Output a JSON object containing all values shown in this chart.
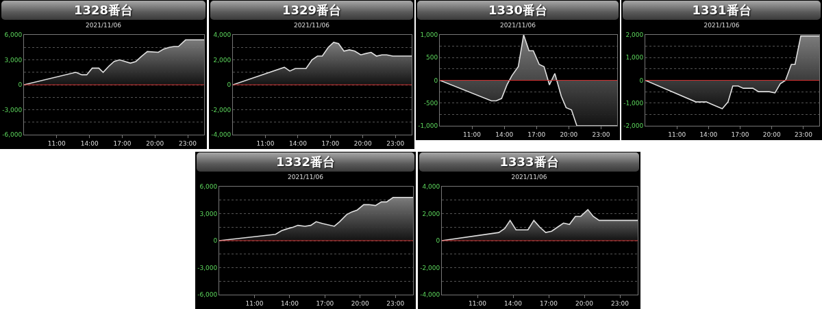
{
  "chart_data": [
    {
      "type": "area",
      "title": "1328番台",
      "subtitle": "2021/11/06",
      "color": "#e0e0e0",
      "x": [
        8,
        12.75,
        13.3,
        13.75,
        14.25,
        14.85,
        15.25,
        15.75,
        16.25,
        16.75,
        17.75,
        18.25,
        18.75,
        19.3,
        20.3,
        20.8,
        21.3,
        21.75,
        22.15,
        22.8,
        24.5
      ],
      "values": [
        0,
        1500,
        1200,
        1200,
        2000,
        2000,
        1500,
        2200,
        2800,
        3000,
        2600,
        2800,
        3400,
        4000,
        3900,
        4300,
        4500,
        4600,
        4600,
        5400,
        5400
      ],
      "xlim": [
        8,
        24.5
      ],
      "xticks": [
        {
          "value": 11,
          "label": "11:00"
        },
        {
          "value": 14,
          "label": "14:00"
        },
        {
          "value": 17,
          "label": "17:00"
        },
        {
          "value": 20,
          "label": "20:00"
        },
        {
          "value": 23,
          "label": "23:00"
        }
      ],
      "ylim": [
        -6000,
        6000
      ],
      "yticks": [
        {
          "value": -6000,
          "label": "-6,000"
        },
        {
          "value": -4500,
          "label": null
        },
        {
          "value": -3000,
          "label": "-3,000"
        },
        {
          "value": -1500,
          "label": null
        },
        {
          "value": 0,
          "label": "0"
        },
        {
          "value": 1500,
          "label": null
        },
        {
          "value": 3000,
          "label": "3,000"
        },
        {
          "value": 4500,
          "label": null
        },
        {
          "value": 6000,
          "label": "6,000"
        }
      ],
      "grid": "y",
      "ref_lines": [
        {
          "axis": "y",
          "value": 0,
          "color": "#d03030"
        }
      ]
    },
    {
      "type": "area",
      "title": "1329番台",
      "subtitle": "2021/11/06",
      "color": "#e0e0e0",
      "x": [
        8,
        12.75,
        13.25,
        13.75,
        14.2,
        14.75,
        15.3,
        15.8,
        16.25,
        16.8,
        17.3,
        17.75,
        18.25,
        18.75,
        19.25,
        19.8,
        20.25,
        20.75,
        21.25,
        21.75,
        22.2,
        22.75,
        24.5
      ],
      "values": [
        0,
        1400,
        1100,
        1300,
        1300,
        1300,
        2000,
        2300,
        2300,
        3000,
        3400,
        3300,
        2700,
        2800,
        2700,
        2400,
        2500,
        2600,
        2300,
        2400,
        2400,
        2300,
        2300
      ],
      "xlim": [
        8,
        24.5
      ],
      "xticks": [
        {
          "value": 11,
          "label": "11:00"
        },
        {
          "value": 14,
          "label": "14:00"
        },
        {
          "value": 17,
          "label": "17:00"
        },
        {
          "value": 20,
          "label": "20:00"
        },
        {
          "value": 23,
          "label": "23:00"
        }
      ],
      "ylim": [
        -4000,
        4000
      ],
      "yticks": [
        {
          "value": -4000,
          "label": "-4,000"
        },
        {
          "value": -3000,
          "label": null
        },
        {
          "value": -2000,
          "label": "-2,000"
        },
        {
          "value": -1000,
          "label": null
        },
        {
          "value": 0,
          "label": "0"
        },
        {
          "value": 1000,
          "label": null
        },
        {
          "value": 2000,
          "label": "2,000"
        },
        {
          "value": 3000,
          "label": null
        },
        {
          "value": 4000,
          "label": "4,000"
        }
      ],
      "grid": "y",
      "ref_lines": [
        {
          "axis": "y",
          "value": 0,
          "color": "#d03030"
        }
      ]
    },
    {
      "type": "area",
      "title": "1330番台",
      "subtitle": "2021/11/06",
      "color": "#e0e0e0",
      "x": [
        8,
        12.8,
        13.25,
        13.75,
        14.25,
        14.7,
        15.3,
        15.8,
        16.3,
        16.7,
        17.25,
        17.7,
        18.2,
        18.7,
        19.3,
        19.75,
        20.25,
        20.75,
        24.5
      ],
      "values": [
        0,
        -450,
        -450,
        -400,
        -100,
        100,
        300,
        1000,
        650,
        650,
        350,
        300,
        -100,
        150,
        -350,
        -600,
        -650,
        -1000,
        -1000
      ],
      "xlim": [
        8,
        24.5
      ],
      "xticks": [
        {
          "value": 11,
          "label": "11:00"
        },
        {
          "value": 14,
          "label": "14:00"
        },
        {
          "value": 17,
          "label": "17:00"
        },
        {
          "value": 20,
          "label": "20:00"
        },
        {
          "value": 23,
          "label": "23:00"
        }
      ],
      "ylim": [
        -1000,
        1000
      ],
      "yticks": [
        {
          "value": -1000,
          "label": "-1,000"
        },
        {
          "value": -750,
          "label": null
        },
        {
          "value": -500,
          "label": "-500"
        },
        {
          "value": -250,
          "label": null
        },
        {
          "value": 0,
          "label": "0"
        },
        {
          "value": 250,
          "label": null
        },
        {
          "value": 500,
          "label": "500"
        },
        {
          "value": 750,
          "label": null
        },
        {
          "value": 1000,
          "label": "1,000"
        }
      ],
      "grid": "y",
      "ref_lines": [
        {
          "axis": "y",
          "value": 0,
          "color": "#d03030"
        }
      ]
    },
    {
      "type": "area",
      "title": "1331番台",
      "subtitle": "2021/11/06",
      "color": "#e0e0e0",
      "x": [
        8,
        12.8,
        13.3,
        13.8,
        14.3,
        15.3,
        15.85,
        16.3,
        16.8,
        17.3,
        18.2,
        18.75,
        19.75,
        20.3,
        20.8,
        21.3,
        21.85,
        22.2,
        22.75,
        24.5
      ],
      "values": [
        0,
        -950,
        -950,
        -950,
        -1050,
        -1250,
        -950,
        -250,
        -250,
        -350,
        -350,
        -500,
        -500,
        -550,
        -150,
        0,
        700,
        700,
        1950,
        1950
      ],
      "xlim": [
        8,
        24.5
      ],
      "xticks": [
        {
          "value": 11,
          "label": "11:00"
        },
        {
          "value": 14,
          "label": "14:00"
        },
        {
          "value": 17,
          "label": "17:00"
        },
        {
          "value": 20,
          "label": "20:00"
        },
        {
          "value": 23,
          "label": "23:00"
        }
      ],
      "ylim": [
        -2000,
        2000
      ],
      "yticks": [
        {
          "value": -2000,
          "label": "-2,000"
        },
        {
          "value": -1500,
          "label": null
        },
        {
          "value": -1000,
          "label": "-1,000"
        },
        {
          "value": -500,
          "label": null
        },
        {
          "value": 0,
          "label": "0"
        },
        {
          "value": 500,
          "label": null
        },
        {
          "value": 1000,
          "label": "1,000"
        },
        {
          "value": 1500,
          "label": null
        },
        {
          "value": 2000,
          "label": "2,000"
        }
      ],
      "grid": "y",
      "ref_lines": [
        {
          "axis": "y",
          "value": 0,
          "color": "#d03030"
        }
      ]
    },
    {
      "type": "area",
      "title": "1332番台",
      "subtitle": "2021/11/06",
      "color": "#e0e0e0",
      "x": [
        8,
        12.8,
        13.3,
        13.75,
        14.3,
        14.7,
        15.3,
        15.8,
        16.25,
        16.8,
        17.8,
        18.25,
        18.85,
        19.3,
        19.75,
        20.3,
        20.75,
        21.3,
        21.8,
        22.25,
        22.8,
        24.5
      ],
      "values": [
        0,
        700,
        1100,
        1300,
        1500,
        1700,
        1600,
        1700,
        2100,
        1900,
        1600,
        2100,
        2900,
        3200,
        3400,
        4000,
        4000,
        3900,
        4300,
        4300,
        4800,
        4800
      ],
      "xlim": [
        8,
        24.5
      ],
      "xticks": [
        {
          "value": 11,
          "label": "11:00"
        },
        {
          "value": 14,
          "label": "14:00"
        },
        {
          "value": 17,
          "label": "17:00"
        },
        {
          "value": 20,
          "label": "20:00"
        },
        {
          "value": 23,
          "label": "23:00"
        }
      ],
      "ylim": [
        -6000,
        6000
      ],
      "yticks": [
        {
          "value": -6000,
          "label": "-6,000"
        },
        {
          "value": -4500,
          "label": null
        },
        {
          "value": -3000,
          "label": "-3,000"
        },
        {
          "value": -1500,
          "label": null
        },
        {
          "value": 0,
          "label": "0"
        },
        {
          "value": 1500,
          "label": null
        },
        {
          "value": 3000,
          "label": "3,000"
        },
        {
          "value": 4500,
          "label": null
        },
        {
          "value": 6000,
          "label": "6,000"
        }
      ],
      "grid": "y",
      "ref_lines": [
        {
          "axis": "y",
          "value": 0,
          "color": "#d03030"
        }
      ]
    },
    {
      "type": "area",
      "title": "1333番台",
      "subtitle": "2021/11/06",
      "color": "#e0e0e0",
      "x": [
        8,
        12.8,
        13.3,
        13.75,
        14.25,
        14.75,
        15.25,
        15.75,
        16.25,
        16.75,
        17.25,
        17.75,
        18.25,
        18.75,
        19.25,
        19.7,
        20.3,
        20.75,
        21.25,
        24.5
      ],
      "values": [
        0,
        600,
        900,
        1500,
        800,
        800,
        800,
        1500,
        1000,
        600,
        700,
        1000,
        1300,
        1200,
        1800,
        1800,
        2300,
        1800,
        1500,
        1500
      ],
      "xlim": [
        8,
        24.5
      ],
      "xticks": [
        {
          "value": 11,
          "label": "11:00"
        },
        {
          "value": 14,
          "label": "14:00"
        },
        {
          "value": 17,
          "label": "17:00"
        },
        {
          "value": 20,
          "label": "20:00"
        },
        {
          "value": 23,
          "label": "23:00"
        }
      ],
      "ylim": [
        -4000,
        4000
      ],
      "yticks": [
        {
          "value": -4000,
          "label": "-4,000"
        },
        {
          "value": -3000,
          "label": null
        },
        {
          "value": -2000,
          "label": "-2,000"
        },
        {
          "value": -1000,
          "label": null
        },
        {
          "value": 0,
          "label": "0"
        },
        {
          "value": 1000,
          "label": null
        },
        {
          "value": 2000,
          "label": "2,000"
        },
        {
          "value": 3000,
          "label": null
        },
        {
          "value": 4000,
          "label": "4,000"
        }
      ],
      "grid": "y",
      "ref_lines": [
        {
          "axis": "y",
          "value": 0,
          "color": "#d03030"
        }
      ]
    }
  ]
}
